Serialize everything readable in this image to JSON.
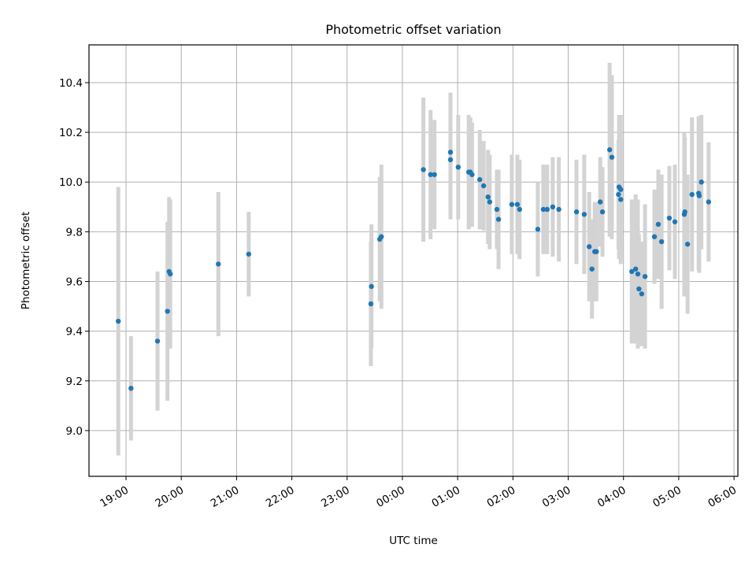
{
  "chart_data": {
    "type": "scatter",
    "title": "Photometric offset variation",
    "xlabel": "UTC time",
    "ylabel": "Photometric offset",
    "x_units": "hours after 19:00 UTC",
    "xlim": [
      -0.67,
      11.07
    ],
    "ylim": [
      8.816,
      10.552
    ],
    "grid": true,
    "x_ticks": [
      {
        "value": 0,
        "label": "19:00"
      },
      {
        "value": 1,
        "label": "20:00"
      },
      {
        "value": 2,
        "label": "21:00"
      },
      {
        "value": 3,
        "label": "22:00"
      },
      {
        "value": 4,
        "label": "23:00"
      },
      {
        "value": 5,
        "label": "00:00"
      },
      {
        "value": 6,
        "label": "01:00"
      },
      {
        "value": 7,
        "label": "02:00"
      },
      {
        "value": 8,
        "label": "03:00"
      },
      {
        "value": 9,
        "label": "04:00"
      },
      {
        "value": 10,
        "label": "05:00"
      },
      {
        "value": 11,
        "label": "06:00"
      }
    ],
    "y_ticks": [
      {
        "value": 9.0,
        "label": "9.0"
      },
      {
        "value": 9.2,
        "label": "9.2"
      },
      {
        "value": 9.4,
        "label": "9.4"
      },
      {
        "value": 9.6,
        "label": "9.6"
      },
      {
        "value": 9.8,
        "label": "9.8"
      },
      {
        "value": 10.0,
        "label": "10.0"
      },
      {
        "value": 10.2,
        "label": "10.2"
      },
      {
        "value": 10.4,
        "label": "10.4"
      }
    ],
    "point_color": "#1f77b4",
    "errorbar_color": "#d3d3d3",
    "points": [
      {
        "x": -0.14,
        "y": 9.44,
        "err": 0.54
      },
      {
        "x": 0.09,
        "y": 9.17,
        "err": 0.21
      },
      {
        "x": 0.57,
        "y": 9.36,
        "err": 0.28
      },
      {
        "x": 0.75,
        "y": 9.48,
        "err": 0.36
      },
      {
        "x": 0.78,
        "y": 9.64,
        "err": 0.3
      },
      {
        "x": 0.8,
        "y": 9.63,
        "err": 0.3
      },
      {
        "x": 1.67,
        "y": 9.67,
        "err": 0.29
      },
      {
        "x": 2.22,
        "y": 9.71,
        "err": 0.17
      },
      {
        "x": 4.43,
        "y": 9.51,
        "err": 0.25
      },
      {
        "x": 4.44,
        "y": 9.58,
        "err": 0.25
      },
      {
        "x": 4.59,
        "y": 9.77,
        "err": 0.25
      },
      {
        "x": 4.62,
        "y": 9.78,
        "err": 0.29
      },
      {
        "x": 5.38,
        "y": 10.05,
        "err": 0.29
      },
      {
        "x": 5.51,
        "y": 10.03,
        "err": 0.26
      },
      {
        "x": 5.58,
        "y": 10.03,
        "err": 0.22
      },
      {
        "x": 5.87,
        "y": 10.12,
        "err": 0.24
      },
      {
        "x": 5.87,
        "y": 10.09,
        "err": 0.24
      },
      {
        "x": 6.01,
        "y": 10.06,
        "err": 0.21
      },
      {
        "x": 6.2,
        "y": 10.04,
        "err": 0.23
      },
      {
        "x": 6.23,
        "y": 10.04,
        "err": 0.22
      },
      {
        "x": 6.26,
        "y": 10.03,
        "err": 0.21
      },
      {
        "x": 6.4,
        "y": 10.01,
        "err": 0.2
      },
      {
        "x": 6.47,
        "y": 9.985,
        "err": 0.18
      },
      {
        "x": 6.55,
        "y": 9.94,
        "err": 0.19
      },
      {
        "x": 6.58,
        "y": 9.92,
        "err": 0.19
      },
      {
        "x": 6.71,
        "y": 9.89,
        "err": 0.16
      },
      {
        "x": 6.74,
        "y": 9.85,
        "err": 0.2
      },
      {
        "x": 6.98,
        "y": 9.91,
        "err": 0.2
      },
      {
        "x": 7.08,
        "y": 9.91,
        "err": 0.2
      },
      {
        "x": 7.12,
        "y": 9.89,
        "err": 0.2
      },
      {
        "x": 7.45,
        "y": 9.81,
        "err": 0.19
      },
      {
        "x": 7.55,
        "y": 9.89,
        "err": 0.18
      },
      {
        "x": 7.62,
        "y": 9.89,
        "err": 0.18
      },
      {
        "x": 7.72,
        "y": 9.9,
        "err": 0.2
      },
      {
        "x": 7.83,
        "y": 9.89,
        "err": 0.21
      },
      {
        "x": 8.15,
        "y": 9.88,
        "err": 0.21
      },
      {
        "x": 8.29,
        "y": 9.87,
        "err": 0.24
      },
      {
        "x": 8.38,
        "y": 9.74,
        "err": 0.22
      },
      {
        "x": 8.43,
        "y": 9.65,
        "err": 0.2
      },
      {
        "x": 8.48,
        "y": 9.72,
        "err": 0.2
      },
      {
        "x": 8.51,
        "y": 9.72,
        "err": 0.2
      },
      {
        "x": 8.58,
        "y": 9.92,
        "err": 0.18
      },
      {
        "x": 8.62,
        "y": 9.88,
        "err": 0.18
      },
      {
        "x": 8.75,
        "y": 10.13,
        "err": 0.35
      },
      {
        "x": 8.79,
        "y": 10.1,
        "err": 0.33
      },
      {
        "x": 8.92,
        "y": 9.98,
        "err": 0.29
      },
      {
        "x": 8.95,
        "y": 9.97,
        "err": 0.3
      },
      {
        "x": 8.91,
        "y": 9.95,
        "err": 0.22
      },
      {
        "x": 8.95,
        "y": 9.93,
        "err": 0.24
      },
      {
        "x": 9.15,
        "y": 9.64,
        "err": 0.29
      },
      {
        "x": 9.22,
        "y": 9.65,
        "err": 0.3
      },
      {
        "x": 9.26,
        "y": 9.63,
        "err": 0.3
      },
      {
        "x": 9.28,
        "y": 9.57,
        "err": 0.22
      },
      {
        "x": 9.33,
        "y": 9.55,
        "err": 0.21
      },
      {
        "x": 9.39,
        "y": 9.62,
        "err": 0.29
      },
      {
        "x": 9.56,
        "y": 9.78,
        "err": 0.19
      },
      {
        "x": 9.63,
        "y": 9.83,
        "err": 0.22
      },
      {
        "x": 9.69,
        "y": 9.76,
        "err": 0.27
      },
      {
        "x": 9.83,
        "y": 9.855,
        "err": 0.21
      },
      {
        "x": 9.93,
        "y": 9.84,
        "err": 0.23
      },
      {
        "x": 10.1,
        "y": 9.87,
        "err": 0.33
      },
      {
        "x": 10.11,
        "y": 9.88,
        "err": 0.3
      },
      {
        "x": 10.16,
        "y": 9.75,
        "err": 0.28
      },
      {
        "x": 10.24,
        "y": 9.95,
        "err": 0.31
      },
      {
        "x": 10.36,
        "y": 9.955,
        "err": 0.31
      },
      {
        "x": 10.37,
        "y": 9.945,
        "err": 0.31
      },
      {
        "x": 10.41,
        "y": 10.0,
        "err": 0.27
      },
      {
        "x": 10.54,
        "y": 9.92,
        "err": 0.24
      }
    ]
  }
}
